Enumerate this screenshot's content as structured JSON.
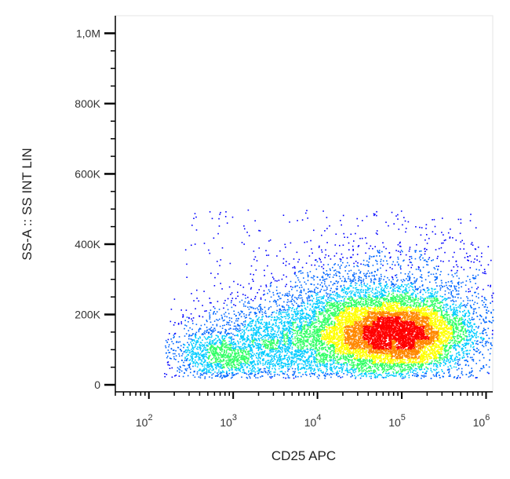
{
  "chart_data": {
    "type": "scatter",
    "style": "flow-cytometry-density-dot-plot",
    "xlabel": "CD25 APC",
    "ylabel": "SS-A :: SS INT LIN",
    "x_scale": "log",
    "xlim": [
      40,
      1200000
    ],
    "ylim": [
      -20000,
      1050000
    ],
    "x_ticks": [
      {
        "value": 100,
        "base": "10",
        "exp": "2"
      },
      {
        "value": 1000,
        "base": "10",
        "exp": "3"
      },
      {
        "value": 10000,
        "base": "10",
        "exp": "4"
      },
      {
        "value": 100000,
        "base": "10",
        "exp": "5"
      },
      {
        "value": 1000000,
        "base": "10",
        "exp": "6"
      }
    ],
    "y_ticks": [
      {
        "value": 0,
        "label": "0"
      },
      {
        "value": 200000,
        "label": "200K"
      },
      {
        "value": 400000,
        "label": "400K"
      },
      {
        "value": 600000,
        "label": "600K"
      },
      {
        "value": 800000,
        "label": "800K"
      },
      {
        "value": 1000000,
        "label": "1,0M"
      }
    ],
    "populations": [
      {
        "x_center": 90000,
        "y_center": 145000,
        "x_spread_decades": 0.45,
        "y_spread": 55000,
        "weight": 0.55
      },
      {
        "x_center": 30000,
        "y_center": 170000,
        "x_spread_decades": 0.6,
        "y_spread": 75000,
        "weight": 0.25
      },
      {
        "x_center": 2500,
        "y_center": 110000,
        "x_spread_decades": 0.55,
        "y_spread": 55000,
        "weight": 0.12
      },
      {
        "x_center": 700,
        "y_center": 80000,
        "x_spread_decades": 0.3,
        "y_spread": 30000,
        "weight": 0.05
      },
      {
        "x_center": 100000,
        "y_center": 330000,
        "x_spread_decades": 0.7,
        "y_spread": 80000,
        "weight": 0.03
      }
    ],
    "y_range_visible": [
      20000,
      500000
    ],
    "density_colors": [
      "#0000ff",
      "#0066ff",
      "#00ccff",
      "#33ff66",
      "#ffff00",
      "#ff8800",
      "#ff0000"
    ],
    "grid": false
  }
}
